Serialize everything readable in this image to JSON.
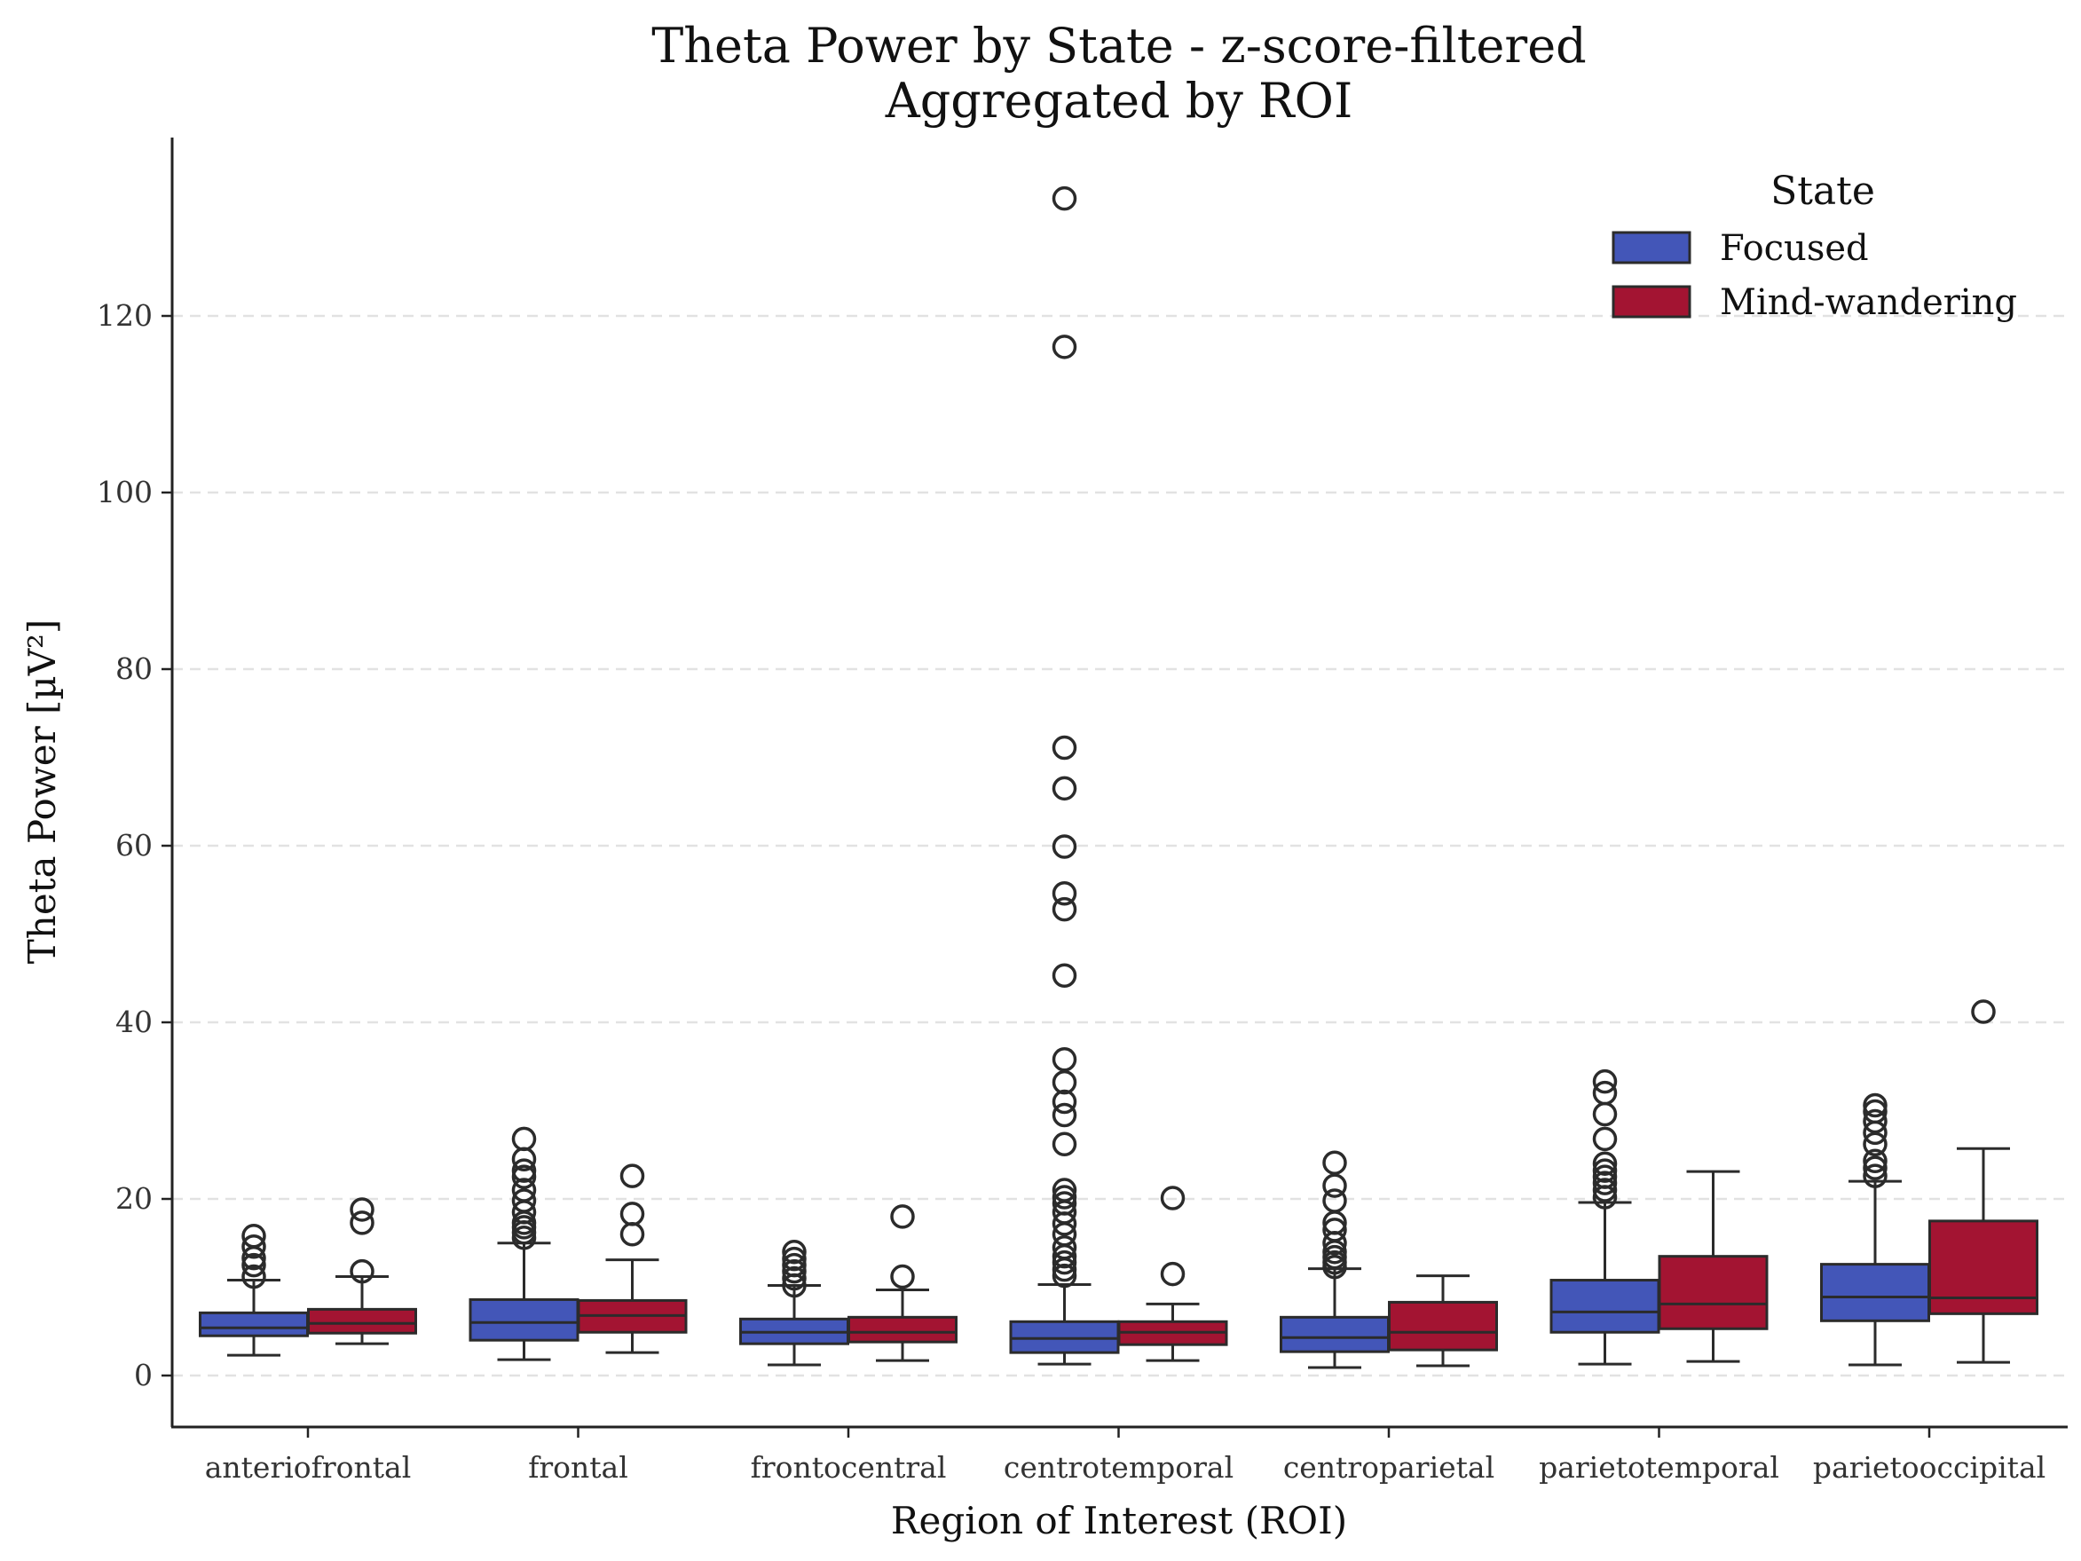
{
  "chart_data": {
    "type": "box",
    "title": "Theta Power by State - z-score-filtered",
    "subtitle": "Aggregated by ROI",
    "xlabel": "Region of Interest (ROI)",
    "ylabel": "Theta Power [µV²]",
    "ylim": [
      -6,
      140
    ],
    "yticks": [
      0,
      20,
      40,
      60,
      80,
      100,
      120
    ],
    "grid": "y-dashed",
    "legend": {
      "title": "State",
      "placement": "top-right"
    },
    "categories": [
      "anteriofrontal",
      "frontal",
      "frontocentral",
      "centrotemporal",
      "centroparietal",
      "parietotemporal",
      "parietooccipital"
    ],
    "series": [
      {
        "name": "Focused",
        "color": "#4356b8",
        "boxes": [
          {
            "min": 2.3,
            "q1": 4.5,
            "median": 5.4,
            "q3": 7.1,
            "max": 10.8,
            "outliers": [
              11.2,
              12.5,
              13.3,
              14.6,
              15.8
            ]
          },
          {
            "min": 1.8,
            "q1": 4.0,
            "median": 6.0,
            "q3": 8.6,
            "max": 15.0,
            "outliers": [
              15.6,
              16.2,
              16.8,
              17.3,
              18.5,
              19.8,
              21.0,
              22.5,
              23.2,
              24.5,
              26.8
            ]
          },
          {
            "min": 1.2,
            "q1": 3.6,
            "median": 4.9,
            "q3": 6.4,
            "max": 10.2,
            "outliers": [
              10.2,
              11.0,
              11.8,
              12.5,
              13.2,
              14.0
            ]
          },
          {
            "min": 1.3,
            "q1": 2.6,
            "median": 4.2,
            "q3": 6.1,
            "max": 10.3,
            "outliers": [
              11.3,
              12.0,
              12.8,
              13.5,
              14.5,
              16.0,
              17.2,
              18.5,
              19.5,
              20.2,
              21.0,
              26.2,
              29.5,
              31.0,
              33.2,
              35.8,
              45.3,
              52.8,
              54.6,
              59.9,
              66.5,
              71.1,
              116.5,
              133.3
            ]
          },
          {
            "min": 0.9,
            "q1": 2.7,
            "median": 4.3,
            "q3": 6.6,
            "max": 12.1,
            "outliers": [
              12.3,
              12.8,
              13.4,
              14.0,
              15.0,
              16.5,
              17.3,
              19.8,
              21.5,
              24.1
            ]
          },
          {
            "min": 1.3,
            "q1": 4.9,
            "median": 7.2,
            "q3": 10.8,
            "max": 19.6,
            "outliers": [
              20.2,
              21.0,
              21.8,
              22.5,
              23.2,
              24.0,
              26.8,
              29.6,
              32.0,
              33.3
            ]
          },
          {
            "min": 1.2,
            "q1": 6.2,
            "median": 8.9,
            "q3": 12.6,
            "max": 22.0,
            "outliers": [
              22.6,
              23.5,
              24.3,
              26.2,
              27.5,
              28.8,
              29.9,
              30.6
            ]
          }
        ]
      },
      {
        "name": "Mind-wandering",
        "color": "#a31432",
        "boxes": [
          {
            "min": 3.6,
            "q1": 4.8,
            "median": 5.9,
            "q3": 7.5,
            "max": 11.2,
            "outliers": [
              11.8,
              17.3,
              18.8
            ]
          },
          {
            "min": 2.6,
            "q1": 4.9,
            "median": 6.8,
            "q3": 8.5,
            "max": 13.1,
            "outliers": [
              16.0,
              18.3,
              22.6
            ]
          },
          {
            "min": 1.7,
            "q1": 3.8,
            "median": 4.9,
            "q3": 6.6,
            "max": 9.7,
            "outliers": [
              11.2,
              18.0
            ]
          },
          {
            "min": 1.7,
            "q1": 3.5,
            "median": 4.9,
            "q3": 6.1,
            "max": 8.1,
            "outliers": [
              11.5,
              20.1
            ]
          },
          {
            "min": 1.1,
            "q1": 2.9,
            "median": 4.9,
            "q3": 8.3,
            "max": 11.3,
            "outliers": []
          },
          {
            "min": 1.6,
            "q1": 5.3,
            "median": 8.1,
            "q3": 13.5,
            "max": 23.1,
            "outliers": []
          },
          {
            "min": 1.5,
            "q1": 7.0,
            "median": 8.8,
            "q3": 17.5,
            "max": 25.7,
            "outliers": [
              41.2
            ]
          }
        ]
      }
    ]
  }
}
